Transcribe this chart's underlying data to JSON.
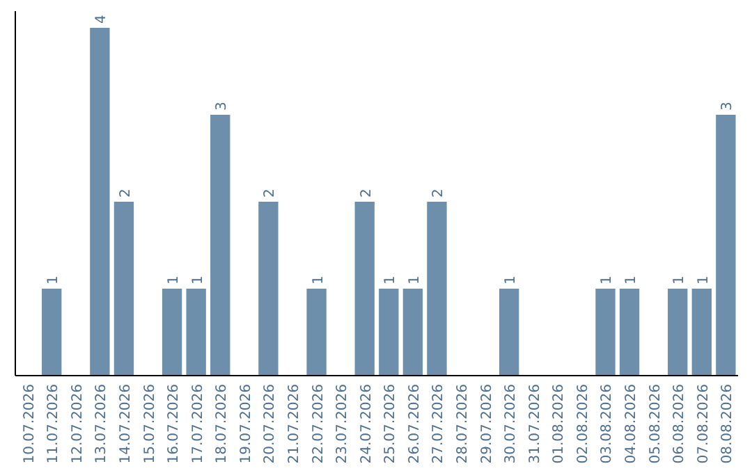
{
  "chart_data": {
    "type": "bar",
    "categories": [
      "10.07.2026",
      "11.07.2026",
      "12.07.2026",
      "13.07.2026",
      "14.07.2026",
      "15.07.2026",
      "16.07.2026",
      "17.07.2026",
      "18.07.2026",
      "19.07.2026",
      "20.07.2026",
      "21.07.2026",
      "22.07.2026",
      "23.07.2026",
      "24.07.2026",
      "25.07.2026",
      "26.07.2026",
      "27.07.2026",
      "28.07.2026",
      "29.07.2026",
      "30.07.2026",
      "31.07.2026",
      "01.08.2026",
      "02.08.2026",
      "03.08.2026",
      "04.08.2026",
      "05.08.2026",
      "06.08.2026",
      "07.08.2026",
      "08.08.2026"
    ],
    "values": [
      0,
      1,
      0,
      4,
      2,
      0,
      1,
      1,
      3,
      0,
      2,
      0,
      1,
      0,
      2,
      1,
      1,
      2,
      0,
      0,
      1,
      0,
      0,
      0,
      1,
      1,
      0,
      1,
      1,
      3
    ],
    "value_labels": [
      null,
      "1",
      null,
      "4",
      "2",
      null,
      "1",
      "1",
      "3",
      null,
      "2",
      null,
      "1",
      null,
      "2",
      "1",
      "1",
      "2",
      null,
      null,
      "1",
      null,
      null,
      null,
      "1",
      "1",
      null,
      "1",
      "1",
      "3"
    ],
    "color": "#6d8fac"
  }
}
